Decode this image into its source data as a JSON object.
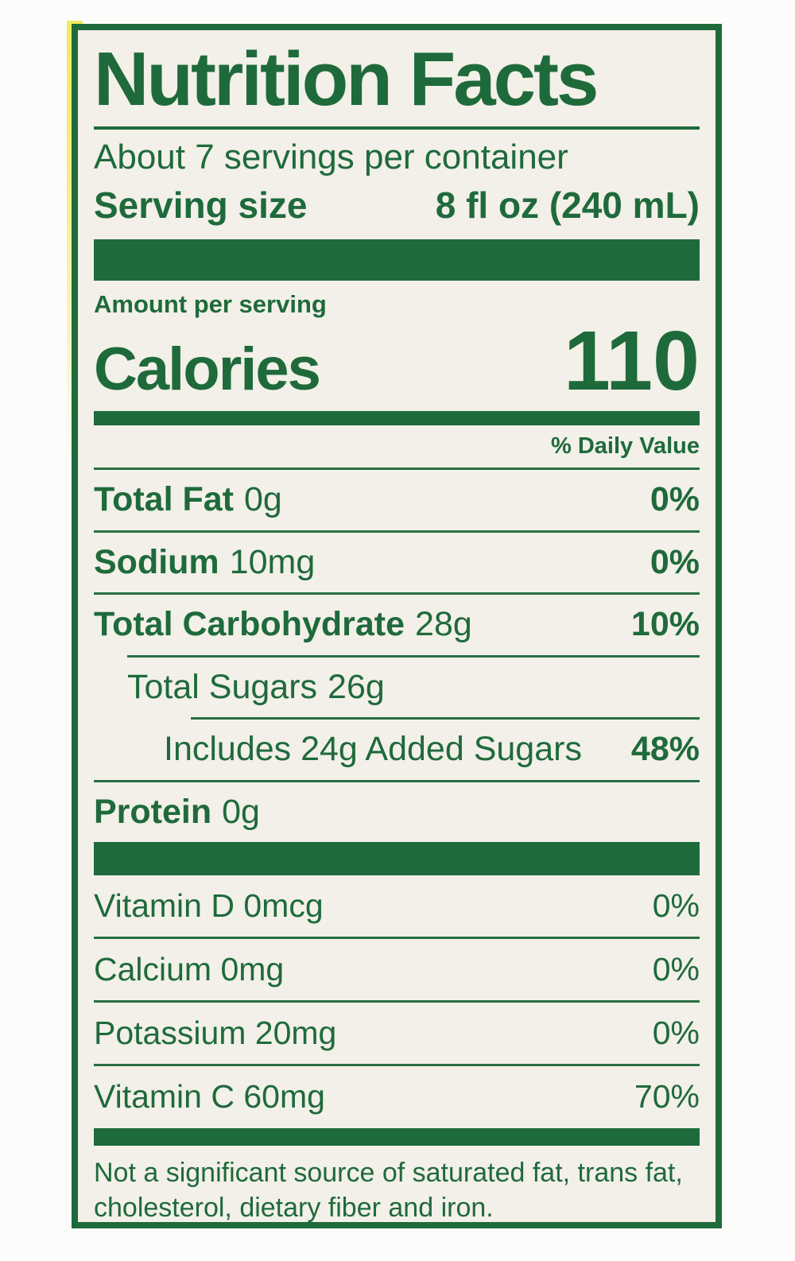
{
  "label": {
    "title": "Nutrition Facts",
    "servings_per_container": "About 7 servings per container",
    "serving_size_label": "Serving size",
    "serving_size_value": "8 fl oz (240 mL)",
    "amount_per_serving": "Amount per serving",
    "calories_label": "Calories",
    "calories_value": "110",
    "daily_value_header": "% Daily Value",
    "nutrients": [
      {
        "name": "Total Fat",
        "amount": "0g",
        "dv": "0%"
      },
      {
        "name": "Sodium",
        "amount": "10mg",
        "dv": "0%"
      },
      {
        "name": "Total Carbohydrate",
        "amount": "28g",
        "dv": "10%"
      },
      {
        "name": "Total Sugars",
        "amount": "26g",
        "dv": ""
      },
      {
        "name": "Includes 24g Added Sugars",
        "amount": "",
        "dv": "48%"
      },
      {
        "name": "Protein",
        "amount": "0g",
        "dv": ""
      }
    ],
    "vitamins": [
      {
        "text": "Vitamin D 0mcg",
        "dv": "0%"
      },
      {
        "text": "Calcium 0mg",
        "dv": "0%"
      },
      {
        "text": "Potassium 20mg",
        "dv": "0%"
      },
      {
        "text": "Vitamin C 60mg",
        "dv": "70%"
      }
    ],
    "footnote": "Not a significant source of saturated fat, trans fat, cholesterol, dietary fiber and iron."
  },
  "colors": {
    "label_green": "#1f6a3b",
    "label_background": "#f2f0e8",
    "package_edge_yellow": "#f1e95f",
    "page_background": "#fcfcfa"
  }
}
